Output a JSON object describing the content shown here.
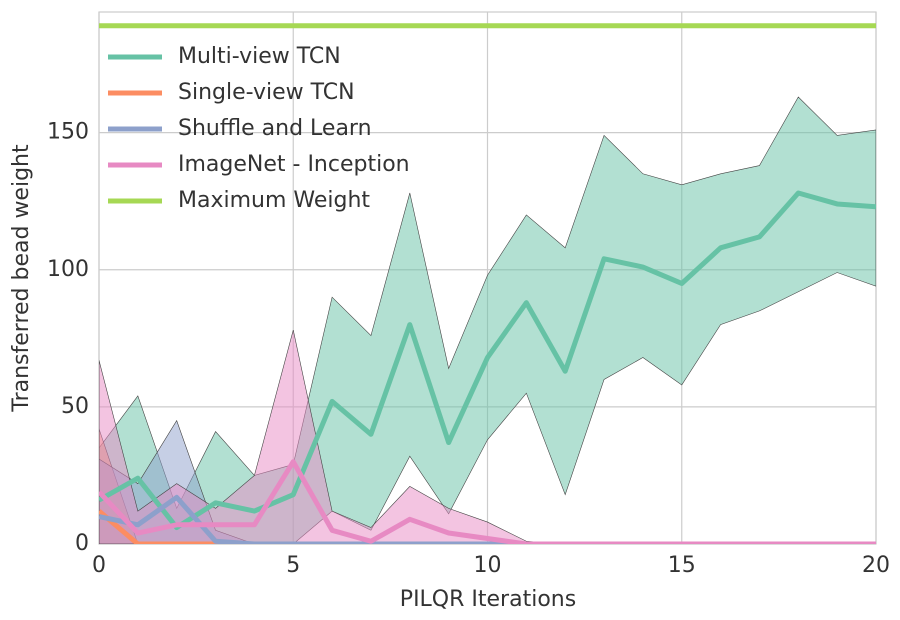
{
  "chart_data": {
    "type": "line",
    "xlabel": "PILQR Iterations",
    "ylabel": "Transferred bead weight",
    "x": [
      0,
      1,
      2,
      3,
      4,
      5,
      6,
      7,
      8,
      9,
      10,
      11,
      12,
      13,
      14,
      15,
      16,
      17,
      18,
      19,
      20
    ],
    "xlim": [
      0,
      20
    ],
    "xticks": [
      0,
      5,
      10,
      15,
      20
    ],
    "ylim": [
      0,
      194
    ],
    "yticks": [
      0,
      50,
      100,
      150
    ],
    "grid": true,
    "legend": "upper left",
    "series": [
      {
        "name": "Multi-view TCN",
        "color": "#66c2a5",
        "values": [
          16,
          24,
          6,
          15,
          12,
          18,
          52,
          40,
          80,
          37,
          68,
          88,
          63,
          104,
          101,
          95,
          108,
          112,
          128,
          124,
          123
        ],
        "upper": [
          35,
          54,
          13,
          41,
          25,
          29,
          90,
          76,
          128,
          64,
          98,
          120,
          108,
          149,
          135,
          131,
          135,
          138,
          163,
          149,
          151
        ],
        "lower": [
          0,
          0,
          0,
          0,
          0,
          0,
          12,
          5,
          32,
          11,
          38,
          55,
          18,
          60,
          68,
          58,
          80,
          85,
          92,
          99,
          94
        ]
      },
      {
        "name": "Single-view TCN",
        "color": "#fc8d62",
        "values": [
          12,
          0,
          0,
          0,
          0,
          0,
          0,
          0,
          0,
          0,
          0,
          0,
          0,
          0,
          0,
          0,
          0,
          0,
          0,
          0,
          0
        ],
        "upper": [
          42,
          0,
          0,
          0,
          0,
          0,
          0,
          0,
          0,
          0,
          0,
          0,
          0,
          0,
          0,
          0,
          0,
          0,
          0,
          0,
          0
        ],
        "lower": [
          0,
          0,
          0,
          0,
          0,
          0,
          0,
          0,
          0,
          0,
          0,
          0,
          0,
          0,
          0,
          0,
          0,
          0,
          0,
          0,
          0
        ]
      },
      {
        "name": "Shuffle and Learn",
        "color": "#8da0cb",
        "values": [
          10,
          7,
          17,
          1,
          0,
          0,
          0,
          0,
          0,
          0,
          0,
          0,
          0,
          0,
          0,
          0,
          0,
          0,
          0,
          0,
          0
        ],
        "upper": [
          31,
          22,
          45,
          5,
          0,
          0,
          0,
          0,
          0,
          0,
          0,
          0,
          0,
          0,
          0,
          0,
          0,
          0,
          0,
          0,
          0
        ],
        "lower": [
          0,
          0,
          0,
          0,
          0,
          0,
          0,
          0,
          0,
          0,
          0,
          0,
          0,
          0,
          0,
          0,
          0,
          0,
          0,
          0,
          0
        ]
      },
      {
        "name": "ImageNet - Inception",
        "color": "#e78ac3",
        "values": [
          19,
          4,
          7,
          7,
          7,
          30,
          5,
          1,
          9,
          4,
          2,
          0,
          0,
          0,
          0,
          0,
          0,
          0,
          0,
          0,
          0
        ],
        "upper": [
          67,
          12,
          22,
          13,
          25,
          78,
          12,
          6,
          21,
          13,
          8,
          1,
          0,
          0,
          0,
          0,
          0,
          0,
          0,
          0,
          0
        ],
        "lower": [
          0,
          0,
          0,
          0,
          0,
          0,
          0,
          0,
          0,
          0,
          0,
          0,
          0,
          0,
          0,
          0,
          0,
          0,
          0,
          0,
          0
        ]
      },
      {
        "name": "Maximum Weight",
        "color": "#a6d854",
        "values": [
          189,
          189,
          189,
          189,
          189,
          189,
          189,
          189,
          189,
          189,
          189,
          189,
          189,
          189,
          189,
          189,
          189,
          189,
          189,
          189,
          189
        ]
      }
    ]
  }
}
